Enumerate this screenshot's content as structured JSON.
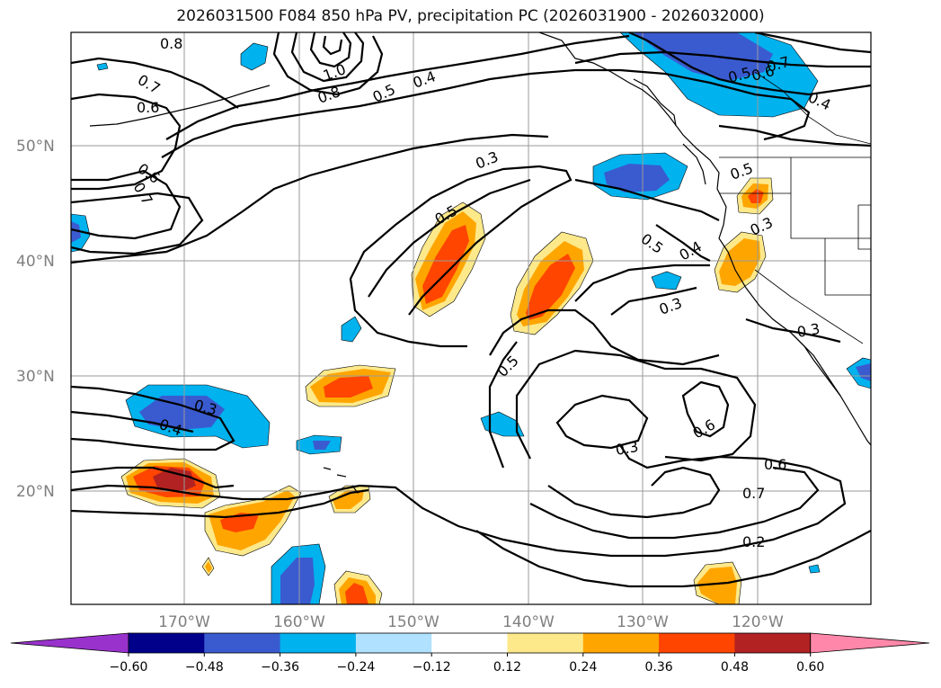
{
  "title": "2026031500 F084 850 hPa PV, precipitation PC (2026031900 - 2026032000)",
  "map": {
    "lat_labels": [
      {
        "lat": 50,
        "label": "50°N"
      },
      {
        "lat": 40,
        "label": "40°N"
      },
      {
        "lat": 30,
        "label": "30°N"
      },
      {
        "lat": 20,
        "label": "20°N"
      }
    ],
    "lon_labels": [
      {
        "lon": -170,
        "label": "170°W"
      },
      {
        "lon": -160,
        "label": "160°W"
      },
      {
        "lon": -150,
        "label": "150°W"
      },
      {
        "lon": -140,
        "label": "140°W"
      },
      {
        "lon": -130,
        "label": "130°W"
      },
      {
        "lon": -120,
        "label": "120°W"
      }
    ],
    "contour_labels": [
      "0.8",
      "0.7",
      "0.6",
      "0.6",
      "0.7",
      "0.5",
      "0.4",
      "0.8",
      "1.0",
      "0.3",
      "0.5",
      "0.5",
      "0.4",
      "0.3",
      "0.3",
      "0.5",
      "0.3",
      "0.4",
      "0.3",
      "0.6",
      "0.6",
      "0.7",
      "0.2",
      "0.5",
      "0.7",
      "0.6",
      "0.4",
      "0.5",
      "0.3"
    ]
  },
  "colorbar": {
    "tick_labels": [
      "−0.60",
      "−0.48",
      "−0.36",
      "−0.24",
      "−0.12",
      "0.12",
      "0.24",
      "0.36",
      "0.48",
      "0.60"
    ],
    "colors": [
      "#9932cc",
      "#00008b",
      "#3a5bd0",
      "#00b2ee",
      "#b0e2ff",
      "#ffffff",
      "#fde98a",
      "#ffa500",
      "#ff4500",
      "#b22222",
      "#ff88aa"
    ]
  }
}
